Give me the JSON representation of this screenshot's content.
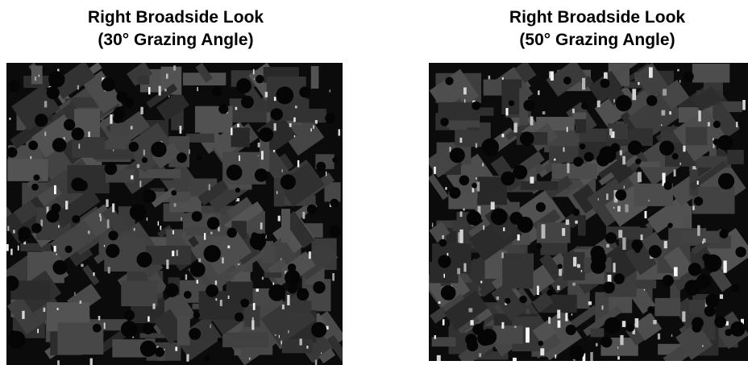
{
  "panels": [
    {
      "title": [
        "Right Broadside Look",
        "(30° Grazing Angle)"
      ]
    },
    {
      "title": [
        "Right Broadside Look",
        "(50° Grazing Angle)"
      ]
    }
  ]
}
